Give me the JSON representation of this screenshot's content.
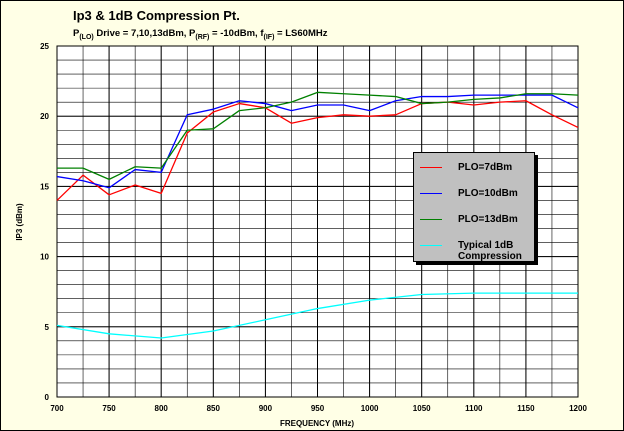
{
  "chart_data": {
    "type": "line",
    "title": "Ip3 & 1dB Compression Pt.",
    "subtitle_parts": [
      "P",
      "(LO)",
      " Drive = 7,10,13dBm, P",
      "(RF)",
      " = -10dBm, f",
      "(IF)",
      " = LS60MHz"
    ],
    "x_label": "FREQUENCY (MHz)",
    "y_label": "IP3 (dBm)",
    "xlim": [
      700,
      1200
    ],
    "xticks": [
      700,
      750,
      800,
      850,
      900,
      950,
      1000,
      1050,
      1100,
      1150,
      1200
    ],
    "ylim": [
      0,
      25
    ],
    "yticks": [
      0,
      5,
      10,
      15,
      20,
      25
    ],
    "grid": true,
    "minor_grid_step": {
      "x": 25,
      "y": 1
    },
    "legend_position": "right",
    "series": [
      {
        "name": "PLO=7dBm",
        "color": "#ff0000",
        "x": [
          700,
          725,
          750,
          775,
          800,
          825,
          850,
          875,
          900,
          925,
          950,
          975,
          1000,
          1025,
          1050,
          1075,
          1100,
          1125,
          1150,
          1175,
          1200
        ],
        "values": [
          14.0,
          15.8,
          14.4,
          15.1,
          14.5,
          18.8,
          20.3,
          20.9,
          20.6,
          19.5,
          19.9,
          20.1,
          20.0,
          20.1,
          20.9,
          21.0,
          20.8,
          21.0,
          21.1,
          20.1,
          19.2
        ]
      },
      {
        "name": "PLO=10dBm",
        "color": "#0000ff",
        "x": [
          700,
          725,
          750,
          775,
          800,
          825,
          850,
          875,
          900,
          925,
          950,
          975,
          1000,
          1025,
          1050,
          1075,
          1100,
          1125,
          1150,
          1175,
          1200
        ],
        "values": [
          15.7,
          15.4,
          14.9,
          16.2,
          16.0,
          20.1,
          20.5,
          21.1,
          20.9,
          20.4,
          20.8,
          20.8,
          20.4,
          21.1,
          21.4,
          21.4,
          21.5,
          21.5,
          21.5,
          21.5,
          20.6
        ]
      },
      {
        "name": "PLO=13dBm",
        "color": "#008000",
        "x": [
          700,
          725,
          750,
          775,
          800,
          825,
          850,
          875,
          900,
          925,
          950,
          975,
          1000,
          1025,
          1050,
          1075,
          1100,
          1125,
          1150,
          1175,
          1200
        ],
        "values": [
          16.3,
          16.3,
          15.5,
          16.4,
          16.3,
          19.0,
          19.1,
          20.4,
          20.6,
          21.0,
          21.7,
          21.6,
          21.5,
          21.4,
          20.9,
          21.0,
          21.2,
          21.3,
          21.6,
          21.6,
          21.5
        ]
      },
      {
        "name": "Typical 1dB Compression",
        "color": "#00ffff",
        "x": [
          700,
          750,
          800,
          850,
          900,
          950,
          1000,
          1050,
          1100,
          1150,
          1200
        ],
        "values": [
          5.1,
          4.5,
          4.2,
          4.7,
          5.5,
          6.3,
          6.9,
          7.3,
          7.4,
          7.4,
          7.4
        ]
      }
    ]
  }
}
